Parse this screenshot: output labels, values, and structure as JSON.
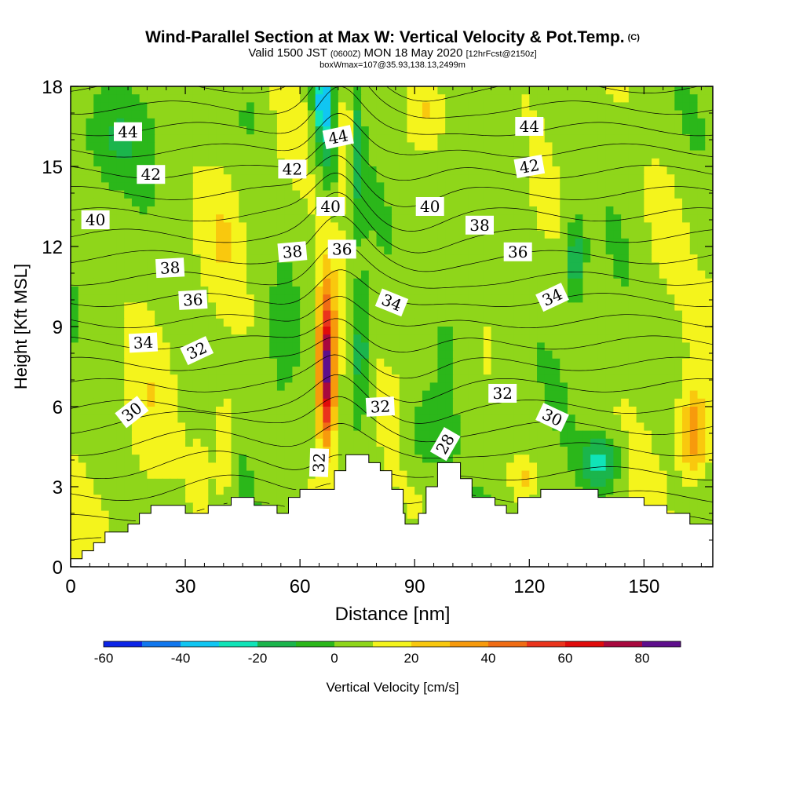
{
  "chart_data": {
    "type": "heatmap",
    "title": "Wind-Parallel Section at Max W: Vertical Velocity & Pot.Temp.",
    "title_mark": "(C)",
    "subtitle_parts": [
      "Valid 1500 JST",
      "(0600Z)",
      "MON 18 May 2020",
      "[12hrFcst@2150z]"
    ],
    "subtitle2": "boxWmax=107@35.93,138.13,2499m",
    "xlabel": "Distance [nm]",
    "ylabel": "Height [Kft MSL]",
    "xlim": [
      0,
      168
    ],
    "ylim": [
      0,
      18
    ],
    "x_ticks": [
      "0",
      "30",
      "60",
      "90",
      "120",
      "150"
    ],
    "x_tick_values": [
      0,
      30,
      60,
      90,
      120,
      150
    ],
    "y_ticks": [
      "0",
      "3",
      "6",
      "9",
      "12",
      "15",
      "18"
    ],
    "y_tick_values": [
      0,
      3,
      6,
      9,
      12,
      15,
      18
    ],
    "colorbar": {
      "label": "Vertical Velocity [cm/s]",
      "bounds": [
        -60,
        90
      ],
      "step": 10,
      "tick_labels": [
        "-60",
        "-40",
        "-20",
        "0",
        "20",
        "40",
        "60",
        "80"
      ],
      "tick_values": [
        -60,
        -40,
        -20,
        0,
        20,
        40,
        60,
        80
      ],
      "colors": [
        "#0c24e6",
        "#1177ee",
        "#10c6f2",
        "#10e4b8",
        "#1bb54c",
        "#2bb71a",
        "#8fd61a",
        "#f4f41c",
        "#f9c80e",
        "#f79a0c",
        "#f06c14",
        "#ea341c",
        "#e00b0b",
        "#a8083e",
        "#5e0e8c"
      ]
    },
    "terrain_kft": [
      [
        0,
        0.3
      ],
      [
        3,
        0.3
      ],
      [
        3,
        0.6
      ],
      [
        6,
        0.6
      ],
      [
        6,
        0.9
      ],
      [
        9,
        0.9
      ],
      [
        9,
        1.3
      ],
      [
        15,
        1.3
      ],
      [
        15,
        1.6
      ],
      [
        18,
        1.6
      ],
      [
        18,
        2.0
      ],
      [
        21,
        2.0
      ],
      [
        21,
        2.3
      ],
      [
        30,
        2.3
      ],
      [
        30,
        2.0
      ],
      [
        36,
        2.0
      ],
      [
        36,
        2.3
      ],
      [
        42,
        2.3
      ],
      [
        42,
        2.6
      ],
      [
        48,
        2.6
      ],
      [
        48,
        2.3
      ],
      [
        54,
        2.3
      ],
      [
        54,
        2.0
      ],
      [
        57,
        2.0
      ],
      [
        57,
        2.6
      ],
      [
        60,
        2.6
      ],
      [
        60,
        2.9
      ],
      [
        69,
        2.9
      ],
      [
        69,
        3.6
      ],
      [
        72,
        3.6
      ],
      [
        72,
        4.2
      ],
      [
        78,
        4.2
      ],
      [
        78,
        3.9
      ],
      [
        81,
        3.9
      ],
      [
        81,
        3.6
      ],
      [
        84,
        3.6
      ],
      [
        84,
        2.9
      ],
      [
        87,
        2.9
      ],
      [
        87,
        2.0
      ],
      [
        87.5,
        2.0
      ],
      [
        87.5,
        1.6
      ],
      [
        91,
        1.6
      ],
      [
        91,
        2.0
      ],
      [
        93,
        2.0
      ],
      [
        93,
        3.0
      ],
      [
        96,
        3.0
      ],
      [
        96,
        3.9
      ],
      [
        102,
        3.9
      ],
      [
        102,
        3.3
      ],
      [
        105,
        3.3
      ],
      [
        105,
        2.6
      ],
      [
        111,
        2.6
      ],
      [
        111,
        2.3
      ],
      [
        114,
        2.3
      ],
      [
        114,
        2.0
      ],
      [
        117,
        2.0
      ],
      [
        117,
        2.6
      ],
      [
        123,
        2.6
      ],
      [
        123,
        2.9
      ],
      [
        138,
        2.9
      ],
      [
        138,
        2.6
      ],
      [
        150,
        2.6
      ],
      [
        150,
        2.3
      ],
      [
        156,
        2.3
      ],
      [
        156,
        2.0
      ],
      [
        162,
        2.0
      ],
      [
        162,
        1.6
      ],
      [
        168,
        1.6
      ]
    ],
    "velocity_features": [
      {
        "x": 67,
        "y": 7.3,
        "sx": 2.0,
        "sy": 2.5,
        "w": 62
      },
      {
        "x": 67,
        "y": 8.5,
        "sx": 3.5,
        "sy": 4.0,
        "w": 22
      },
      {
        "x": 76,
        "y": 8.0,
        "sx": 2.0,
        "sy": 2.5,
        "w": -25
      },
      {
        "x": 66,
        "y": 17.5,
        "sx": 2.5,
        "sy": 1.4,
        "w": -40
      },
      {
        "x": 67,
        "y": 15.5,
        "sx": 2.5,
        "sy": 2.0,
        "w": -20
      },
      {
        "x": 72,
        "y": 16.0,
        "sx": 1.5,
        "sy": 2.5,
        "w": 18
      },
      {
        "x": 75,
        "y": 15.5,
        "sx": 1.5,
        "sy": 2.5,
        "w": -18
      },
      {
        "x": 132,
        "y": 11.5,
        "sx": 2.5,
        "sy": 1.5,
        "w": -25
      },
      {
        "x": 139,
        "y": 3.9,
        "sx": 5.0,
        "sy": 1.0,
        "w": -30
      },
      {
        "x": 93,
        "y": 5.0,
        "sx": 6.0,
        "sy": 1.5,
        "w": -15
      },
      {
        "x": 163,
        "y": 5.0,
        "sx": 3.5,
        "sy": 1.6,
        "w": 32
      },
      {
        "x": 40,
        "y": 4.5,
        "sx": 2.5,
        "sy": 1.8,
        "w": 22
      },
      {
        "x": 34,
        "y": 3.3,
        "sx": 2.5,
        "sy": 1.3,
        "w": 12
      },
      {
        "x": 94,
        "y": 17.2,
        "sx": 5.0,
        "sy": 1.3,
        "w": 18
      },
      {
        "x": 48,
        "y": 17.0,
        "sx": 4.0,
        "sy": 1.5,
        "w": -8
      },
      {
        "x": 12,
        "y": 16.0,
        "sx": 10.0,
        "sy": 1.5,
        "w": -12
      },
      {
        "x": 40,
        "y": 12.5,
        "sx": 4.0,
        "sy": 2.0,
        "w": 10
      },
      {
        "x": 55,
        "y": 8.5,
        "sx": 3.0,
        "sy": 2.5,
        "w": -10
      },
      {
        "x": 100,
        "y": 9.0,
        "sx": 6.0,
        "sy": 2.5,
        "w": -10
      },
      {
        "x": 20,
        "y": 6.0,
        "sx": 4.0,
        "sy": 3.0,
        "w": 8
      },
      {
        "x": 115,
        "y": 15.0,
        "sx": 5.0,
        "sy": 2.0,
        "w": -8
      },
      {
        "x": 155,
        "y": 13.0,
        "sx": 6.0,
        "sy": 2.5,
        "w": 8
      },
      {
        "x": 118,
        "y": 3.3,
        "sx": 3.0,
        "sy": 0.8,
        "w": 15
      }
    ],
    "isentrope_labels": [
      {
        "text": "44",
        "x": 15,
        "y": 16.3,
        "angle": 0
      },
      {
        "text": "42",
        "x": 21,
        "y": 14.7,
        "angle": 0
      },
      {
        "text": "40",
        "x": 6.5,
        "y": 13.0,
        "angle": 0
      },
      {
        "text": "38",
        "x": 26,
        "y": 11.2,
        "angle": -3
      },
      {
        "text": "36",
        "x": 32,
        "y": 10.0,
        "angle": -3
      },
      {
        "text": "34",
        "x": 19,
        "y": 8.4,
        "angle": -3
      },
      {
        "text": "32",
        "x": 33,
        "y": 8.1,
        "angle": -25
      },
      {
        "text": "30",
        "x": 16,
        "y": 5.8,
        "angle": -38
      },
      {
        "text": "42",
        "x": 58,
        "y": 14.9,
        "angle": 0
      },
      {
        "text": "44",
        "x": 70,
        "y": 16.1,
        "angle": -12
      },
      {
        "text": "40",
        "x": 68,
        "y": 13.5,
        "angle": 0
      },
      {
        "text": "38",
        "x": 58,
        "y": 11.8,
        "angle": -5
      },
      {
        "text": "36",
        "x": 71,
        "y": 11.9,
        "angle": 0
      },
      {
        "text": "34",
        "x": 84,
        "y": 9.9,
        "angle": 22
      },
      {
        "text": "32",
        "x": 81,
        "y": 6.0,
        "angle": -3
      },
      {
        "text": "32",
        "x": 65,
        "y": 3.9,
        "angle": -88
      },
      {
        "text": "28",
        "x": 98,
        "y": 4.6,
        "angle": -60
      },
      {
        "text": "40",
        "x": 94,
        "y": 13.5,
        "angle": 0
      },
      {
        "text": "38",
        "x": 107,
        "y": 12.8,
        "angle": 0
      },
      {
        "text": "36",
        "x": 117,
        "y": 11.8,
        "angle": 0
      },
      {
        "text": "34",
        "x": 126,
        "y": 10.1,
        "angle": -25
      },
      {
        "text": "32",
        "x": 113,
        "y": 6.5,
        "angle": 0
      },
      {
        "text": "30",
        "x": 126,
        "y": 5.6,
        "angle": 25
      },
      {
        "text": "44",
        "x": 120,
        "y": 16.5,
        "angle": 0
      },
      {
        "text": "42",
        "x": 120,
        "y": 15.0,
        "angle": -10
      }
    ]
  }
}
